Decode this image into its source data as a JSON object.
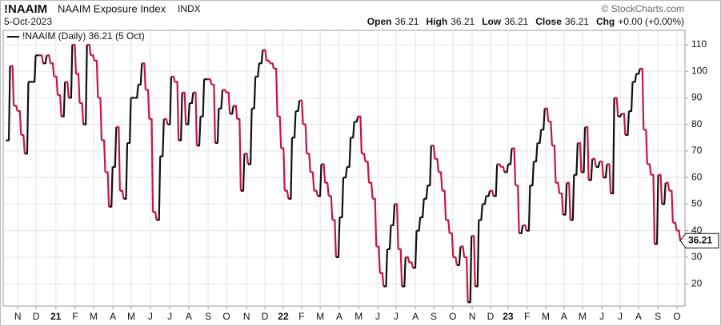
{
  "header": {
    "symbol": "!NAAIM",
    "name": "NAAIM Exposure Index",
    "exchange": "INDX",
    "copyright": "© StockCharts.com",
    "date": "5-Oct-2023",
    "quote": [
      {
        "label": "Open",
        "value": 36.21
      },
      {
        "label": "High",
        "value": 36.21
      },
      {
        "label": "Low",
        "value": 36.21
      },
      {
        "label": "Close",
        "value": 36.21
      },
      {
        "label": "Chg",
        "value": "+0.00 (+0.00%)"
      }
    ]
  },
  "chart_data": {
    "type": "line",
    "legend": "!NAAIM (Daily) 36.21 (5 Oct)",
    "up_color": "#111111",
    "down_color": "#c8163f",
    "grid": true,
    "series": [
      {
        "name": "!NAAIM",
        "values": [
          74,
          102,
          87,
          85,
          76,
          69,
          96,
          96,
          106,
          106,
          103,
          106,
          103,
          98,
          91,
          83,
          96,
          90,
          110,
          99,
          88,
          80,
          110,
          106,
          104,
          90,
          74,
          62,
          49,
          64,
          79,
          55,
          52,
          73,
          90,
          90,
          95,
          103,
          93,
          82,
          47,
          44,
          68,
          82,
          80,
          98,
          96,
          74,
          92,
          80,
          88,
          92,
          72,
          83,
          97,
          97,
          95,
          73,
          86,
          93,
          92,
          84,
          87,
          82,
          55,
          69,
          65,
          86,
          98,
          103,
          108,
          104,
          103,
          101,
          83,
          71,
          55,
          52,
          75,
          85,
          89,
          80,
          69,
          62,
          55,
          53,
          65,
          58,
          53,
          44,
          30,
          45,
          60,
          64,
          75,
          81,
          83,
          69,
          66,
          58,
          52,
          34,
          24,
          19,
          33,
          42,
          50,
          33,
          19,
          30,
          28,
          26,
          40,
          45,
          52,
          57,
          72,
          67,
          62,
          55,
          44,
          39,
          30,
          27,
          34,
          30,
          13,
          38,
          19,
          44,
          50,
          53,
          55,
          53,
          65,
          64,
          62,
          65,
          71,
          57,
          39,
          42,
          40,
          57,
          66,
          73,
          78,
          86,
          81,
          72,
          58,
          54,
          46,
          58,
          44,
          61,
          73,
          62,
          79,
          59,
          67,
          64,
          66,
          60,
          65,
          54,
          90,
          83,
          84,
          76,
          85,
          96,
          99,
          101,
          78,
          65,
          61,
          35,
          61,
          50,
          58,
          55,
          43,
          40,
          36.21
        ]
      }
    ],
    "xlim": [
      0,
      184
    ],
    "xticks": [
      {
        "value": 3.1,
        "label": "N"
      },
      {
        "value": 8.1,
        "label": "D"
      },
      {
        "value": 13.5,
        "label": "21"
      },
      {
        "value": 18.8,
        "label": "F"
      },
      {
        "value": 23.8,
        "label": "M"
      },
      {
        "value": 29.1,
        "label": "A"
      },
      {
        "value": 34.1,
        "label": "M"
      },
      {
        "value": 39.3,
        "label": "J"
      },
      {
        "value": 44.6,
        "label": "J"
      },
      {
        "value": 49.8,
        "label": "A"
      },
      {
        "value": 55.1,
        "label": "S"
      },
      {
        "value": 60.1,
        "label": "O"
      },
      {
        "value": 65.6,
        "label": "N"
      },
      {
        "value": 70.6,
        "label": "D"
      },
      {
        "value": 75.6,
        "label": "22"
      },
      {
        "value": 80.6,
        "label": "F"
      },
      {
        "value": 85.7,
        "label": "M"
      },
      {
        "value": 90.9,
        "label": "A"
      },
      {
        "value": 96.2,
        "label": "M"
      },
      {
        "value": 101.4,
        "label": "J"
      },
      {
        "value": 106.4,
        "label": "J"
      },
      {
        "value": 111.7,
        "label": "A"
      },
      {
        "value": 116.7,
        "label": "S"
      },
      {
        "value": 121.9,
        "label": "O"
      },
      {
        "value": 127.2,
        "label": "N"
      },
      {
        "value": 132.2,
        "label": "D"
      },
      {
        "value": 137.0,
        "label": "23"
      },
      {
        "value": 142.2,
        "label": "F"
      },
      {
        "value": 147.3,
        "label": "M"
      },
      {
        "value": 152.3,
        "label": "A"
      },
      {
        "value": 157.3,
        "label": "M"
      },
      {
        "value": 162.6,
        "label": "J"
      },
      {
        "value": 167.6,
        "label": "J"
      },
      {
        "value": 172.6,
        "label": "A"
      },
      {
        "value": 177.9,
        "label": "S"
      },
      {
        "value": 183.1,
        "label": "O"
      }
    ],
    "ylim": [
      11.6,
      115.4
    ],
    "yticks": [
      20,
      30,
      40,
      50,
      60,
      70,
      80,
      90,
      100,
      110
    ]
  }
}
